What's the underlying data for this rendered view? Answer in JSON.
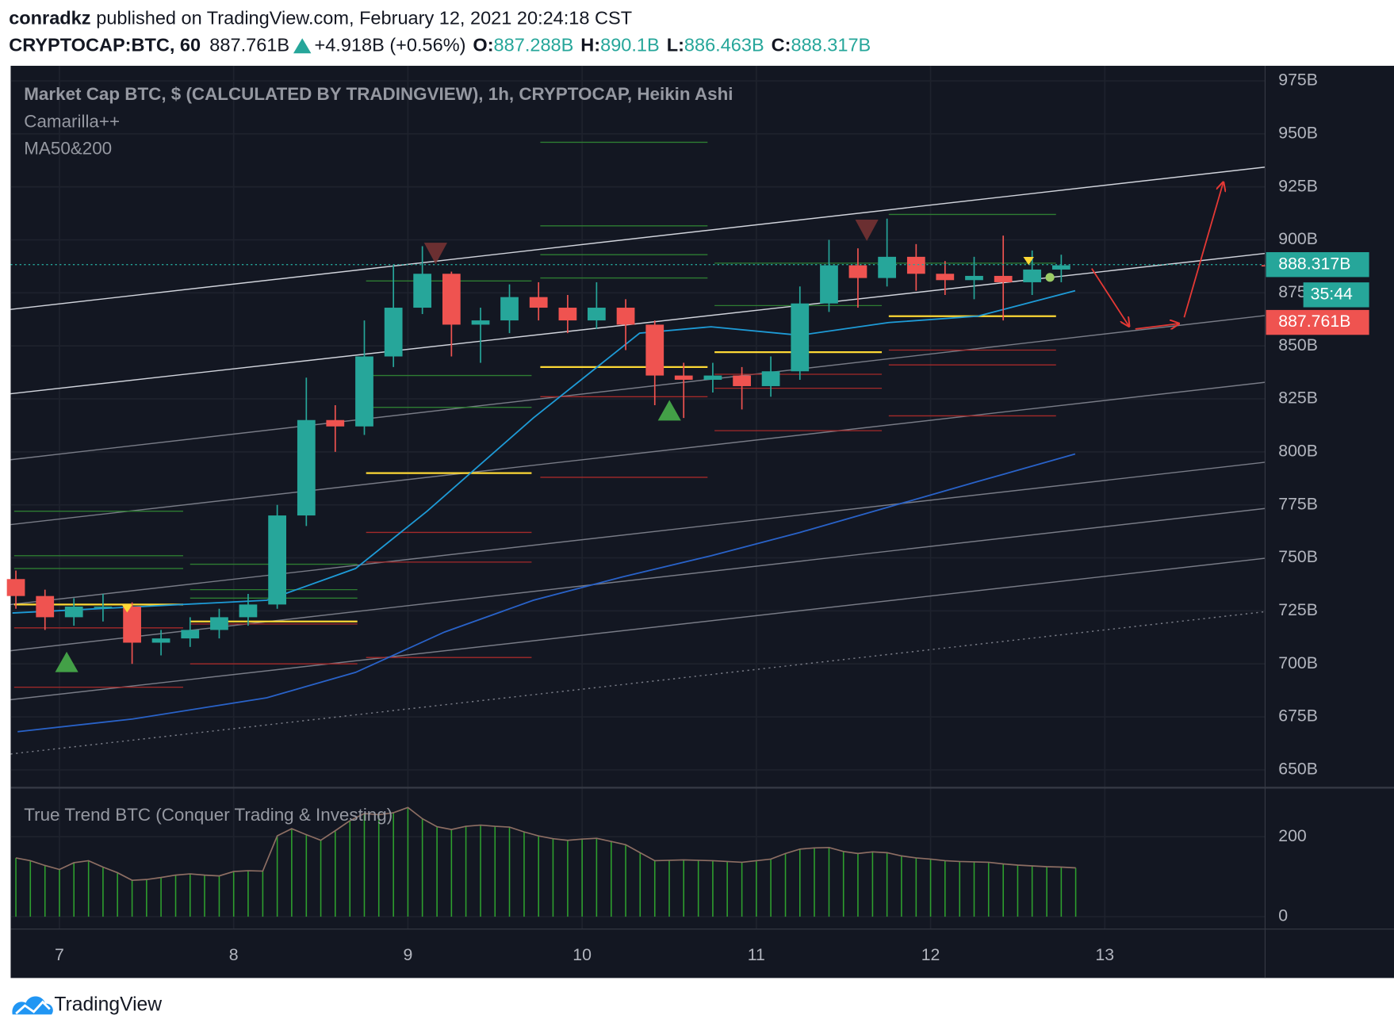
{
  "header": {
    "author": "conradkz",
    "published": "published on TradingView.com, February 12, 2021 20:24:18 CST",
    "symbol": "CRYPTOCAP:BTC, 60",
    "price": "887.761B",
    "change": "+4.918B (+0.56%)",
    "ohlc": [
      {
        "key": "O:",
        "value": "887.288B"
      },
      {
        "key": "H:",
        "value": "890.1B"
      },
      {
        "key": "L:",
        "value": "886.463B"
      },
      {
        "key": "C:",
        "value": "888.317B"
      }
    ]
  },
  "footer": "TradingView",
  "chart_data": [
    {
      "type": "candlestick",
      "title": "Market Cap BTC, $ (CALCULATED BY TRADINGVIEW), 1h, CRYPTOCAP, Heikin Ashi",
      "indicators": [
        "Camarilla++",
        "MA50&200"
      ],
      "up_color": "#26a69a",
      "down_color": "#ef5350",
      "grid": true,
      "xlim": [
        6.72,
        13.92
      ],
      "xticks": [
        7,
        8,
        9,
        10,
        11,
        12,
        13
      ],
      "ylim": [
        642,
        980
      ],
      "yticks": [
        {
          "value": 650,
          "label": "650B"
        },
        {
          "value": 675,
          "label": "675B"
        },
        {
          "value": 700,
          "label": "700B"
        },
        {
          "value": 725,
          "label": "725B"
        },
        {
          "value": 750,
          "label": "750B"
        },
        {
          "value": 775,
          "label": "775B"
        },
        {
          "value": 800,
          "label": "800B"
        },
        {
          "value": 825,
          "label": "825B"
        },
        {
          "value": 850,
          "label": "850B"
        },
        {
          "value": 875,
          "label": "875B"
        },
        {
          "value": 900,
          "label": "900B"
        },
        {
          "value": 925,
          "label": "925B"
        },
        {
          "value": 950,
          "label": "950B"
        },
        {
          "value": 975,
          "label": "975B"
        }
      ],
      "x": [
        6.75,
        6.917,
        7.083,
        7.25,
        7.417,
        7.583,
        7.75,
        7.917,
        8.083,
        8.25,
        8.417,
        8.583,
        8.75,
        8.917,
        9.083,
        9.25,
        9.417,
        9.583,
        9.75,
        9.917,
        10.083,
        10.25,
        10.417,
        10.583,
        10.75,
        10.917,
        11.083,
        11.25,
        11.417,
        11.583,
        11.75,
        11.917,
        12.083,
        12.25,
        12.417,
        12.583,
        12.75
      ],
      "open": [
        740,
        732,
        722,
        727,
        727,
        710,
        712,
        716,
        722,
        728,
        770,
        815,
        812,
        845,
        868,
        884,
        860,
        862,
        873,
        868,
        862,
        868,
        860,
        836,
        834,
        836,
        831,
        838,
        870,
        888,
        882,
        892,
        884,
        881,
        883,
        880,
        886
      ],
      "high": [
        744,
        735,
        731,
        733,
        729,
        716,
        722,
        726,
        733,
        775,
        835,
        822,
        862,
        888,
        897,
        885,
        868,
        879,
        880,
        874,
        880,
        872,
        862,
        842,
        842,
        840,
        845,
        878,
        900,
        896,
        910,
        898,
        890,
        892,
        902,
        895,
        893
      ],
      "low": [
        726,
        716,
        718,
        720,
        700,
        704,
        708,
        712,
        718,
        726,
        765,
        800,
        808,
        840,
        865,
        845,
        842,
        856,
        862,
        856,
        858,
        848,
        822,
        816,
        828,
        820,
        826,
        834,
        866,
        868,
        878,
        876,
        874,
        872,
        862,
        874,
        880
      ],
      "close": [
        732,
        722,
        727,
        727,
        710,
        712,
        716,
        722,
        728,
        770,
        815,
        812,
        845,
        868,
        884,
        860,
        862,
        873,
        868,
        862,
        868,
        860,
        836,
        834,
        836,
        831,
        838,
        870,
        888,
        882,
        892,
        884,
        881,
        883,
        880,
        886,
        888
      ],
      "overlays": [
        {
          "color": "#1e9bd7",
          "x": [
            6.73,
            8.19,
            8.7,
            9.11,
            9.72,
            10.33,
            10.74,
            11.25,
            11.76,
            12.27,
            12.83
          ],
          "values": [
            724,
            730,
            745,
            772,
            816,
            856,
            859,
            855,
            861,
            864,
            876
          ]
        },
        {
          "color": "#2962c8",
          "x": [
            6.76,
            7.42,
            8.19,
            8.7,
            9.21,
            9.72,
            10.23,
            10.74,
            11.25,
            11.76,
            12.27,
            12.83
          ],
          "values": [
            668,
            674,
            684,
            696,
            715,
            730,
            741,
            751,
            762,
            774,
            786,
            799
          ]
        }
      ],
      "trendlines": [
        {
          "x": [
            6.72,
            13.92
          ],
          "values": [
            867.2,
            934.3
          ],
          "color": "#d1d4dc",
          "style": "solid"
        },
        {
          "x": [
            6.72,
            13.92
          ],
          "values": [
            827.4,
            893.6
          ],
          "color": "#d1d4dc",
          "style": "solid"
        },
        {
          "x": [
            6.72,
            13.92
          ],
          "values": [
            796.3,
            864.3
          ],
          "color": "#787b86",
          "style": "solid"
        },
        {
          "x": [
            6.72,
            13.92
          ],
          "values": [
            765.7,
            832.8
          ],
          "color": "#787b86",
          "style": "solid"
        },
        {
          "x": [
            6.72,
            13.92
          ],
          "values": [
            728.0,
            795.1
          ],
          "color": "#787b86",
          "style": "solid"
        },
        {
          "x": [
            6.72,
            13.92
          ],
          "values": [
            706.2,
            773.3
          ],
          "color": "#787b86",
          "style": "solid"
        },
        {
          "x": [
            6.72,
            13.92
          ],
          "values": [
            683.1,
            749.8
          ],
          "color": "#787b86",
          "style": "solid"
        },
        {
          "x": [
            6.72,
            13.92
          ],
          "values": [
            657.5,
            724.6
          ],
          "color": "#787b86",
          "style": "dotted"
        }
      ],
      "levels": [
        {
          "start": 6.74,
          "end": 7.71,
          "value": 772,
          "color": "#2e7d32"
        },
        {
          "start": 6.74,
          "end": 7.71,
          "value": 751,
          "color": "#2e7d32"
        },
        {
          "start": 6.74,
          "end": 7.71,
          "value": 745,
          "color": "#2e7d32"
        },
        {
          "start": 6.74,
          "end": 7.71,
          "value": 728,
          "color": "#fdd835"
        },
        {
          "start": 6.74,
          "end": 7.71,
          "value": 717,
          "color": "#a52a2a"
        },
        {
          "start": 6.74,
          "end": 7.71,
          "value": 689,
          "color": "#a52a2a"
        },
        {
          "start": 7.75,
          "end": 8.71,
          "value": 747,
          "color": "#2e7d32"
        },
        {
          "start": 7.75,
          "end": 8.71,
          "value": 735,
          "color": "#2e7d32"
        },
        {
          "start": 7.75,
          "end": 8.71,
          "value": 731,
          "color": "#2e7d32"
        },
        {
          "start": 7.75,
          "end": 8.71,
          "value": 720,
          "color": "#fdd835"
        },
        {
          "start": 7.75,
          "end": 8.71,
          "value": 718.8,
          "color": "#a52a2a"
        },
        {
          "start": 7.75,
          "end": 8.71,
          "value": 700,
          "color": "#a52a2a"
        },
        {
          "start": 8.76,
          "end": 9.71,
          "value": 880.6,
          "color": "#2e7d32"
        },
        {
          "start": 8.76,
          "end": 9.71,
          "value": 836,
          "color": "#2e7d32"
        },
        {
          "start": 8.76,
          "end": 9.71,
          "value": 821,
          "color": "#2e7d32"
        },
        {
          "start": 8.76,
          "end": 9.71,
          "value": 790,
          "color": "#fdd835"
        },
        {
          "start": 8.76,
          "end": 9.71,
          "value": 762,
          "color": "#a52a2a"
        },
        {
          "start": 8.76,
          "end": 9.71,
          "value": 748,
          "color": "#a52a2a"
        },
        {
          "start": 8.76,
          "end": 9.71,
          "value": 703,
          "color": "#a52a2a"
        },
        {
          "start": 9.76,
          "end": 10.72,
          "value": 946,
          "color": "#2e7d32"
        },
        {
          "start": 9.76,
          "end": 10.72,
          "value": 906.6,
          "color": "#2e7d32"
        },
        {
          "start": 9.76,
          "end": 10.72,
          "value": 893,
          "color": "#2e7d32"
        },
        {
          "start": 9.76,
          "end": 10.72,
          "value": 882,
          "color": "#2e7d32"
        },
        {
          "start": 9.76,
          "end": 10.72,
          "value": 840,
          "color": "#fdd835"
        },
        {
          "start": 9.76,
          "end": 10.72,
          "value": 826,
          "color": "#a52a2a"
        },
        {
          "start": 9.76,
          "end": 10.72,
          "value": 788,
          "color": "#a52a2a"
        },
        {
          "start": 10.76,
          "end": 11.72,
          "value": 889,
          "color": "#2e7d32"
        },
        {
          "start": 10.76,
          "end": 11.72,
          "value": 869,
          "color": "#2e7d32"
        },
        {
          "start": 10.76,
          "end": 11.72,
          "value": 847,
          "color": "#fdd835"
        },
        {
          "start": 10.76,
          "end": 11.72,
          "value": 836.6,
          "color": "#a52a2a"
        },
        {
          "start": 10.76,
          "end": 11.72,
          "value": 830,
          "color": "#a52a2a"
        },
        {
          "start": 10.76,
          "end": 11.72,
          "value": 810,
          "color": "#a52a2a"
        },
        {
          "start": 11.76,
          "end": 12.72,
          "value": 912,
          "color": "#2e7d32"
        },
        {
          "start": 11.76,
          "end": 12.72,
          "value": 889,
          "color": "#2e7d32"
        },
        {
          "start": 11.76,
          "end": 12.72,
          "value": 864,
          "color": "#fdd835"
        },
        {
          "start": 11.76,
          "end": 12.72,
          "value": 848,
          "color": "#a52a2a"
        },
        {
          "start": 11.76,
          "end": 12.72,
          "value": 841,
          "color": "#a52a2a"
        },
        {
          "start": 11.76,
          "end": 12.72,
          "value": 817,
          "color": "#a52a2a"
        }
      ],
      "last_price": {
        "value": 888.317,
        "label": "888.317B"
      },
      "countdown": "35:44",
      "current_price": {
        "value": 887.761,
        "label": "887.761B"
      }
    },
    {
      "type": "bar",
      "title": "True Trend BTC (Conquer Trading & Investing)",
      "color": "#2ea02e",
      "line_color": "#8d6e63",
      "ylim": [
        -31,
        318
      ],
      "yticks": [
        0,
        200
      ],
      "x": [
        6.75,
        6.833,
        6.917,
        7.0,
        7.083,
        7.167,
        7.25,
        7.333,
        7.417,
        7.5,
        7.583,
        7.667,
        7.75,
        7.833,
        7.917,
        8.0,
        8.083,
        8.167,
        8.25,
        8.333,
        8.417,
        8.5,
        8.583,
        8.667,
        8.75,
        8.833,
        8.917,
        9.0,
        9.083,
        9.167,
        9.25,
        9.333,
        9.417,
        9.5,
        9.583,
        9.667,
        9.75,
        9.833,
        9.917,
        10.0,
        10.083,
        10.167,
        10.25,
        10.333,
        10.417,
        10.5,
        10.583,
        10.667,
        10.75,
        10.833,
        10.917,
        11.0,
        11.083,
        11.167,
        11.25,
        11.333,
        11.417,
        11.5,
        11.583,
        11.667,
        11.75,
        11.833,
        11.917,
        12.0,
        12.083,
        12.167,
        12.25,
        12.333,
        12.417,
        12.5,
        12.583,
        12.667,
        12.75,
        12.833
      ],
      "values": [
        147,
        140,
        128,
        118,
        135,
        140,
        124,
        110,
        91,
        93,
        98,
        104,
        107,
        104,
        102,
        113,
        115,
        114,
        202,
        220,
        205,
        191,
        215,
        240,
        258,
        255,
        260,
        273,
        245,
        225,
        218,
        226,
        229,
        226,
        224,
        212,
        202,
        195,
        191,
        194,
        196,
        188,
        180,
        160,
        140,
        141,
        142,
        141,
        140,
        138,
        136,
        140,
        144,
        158,
        169,
        172,
        173,
        163,
        158,
        162,
        160,
        152,
        147,
        144,
        140,
        138,
        137,
        136,
        132,
        129,
        127,
        125,
        124,
        122
      ]
    }
  ]
}
